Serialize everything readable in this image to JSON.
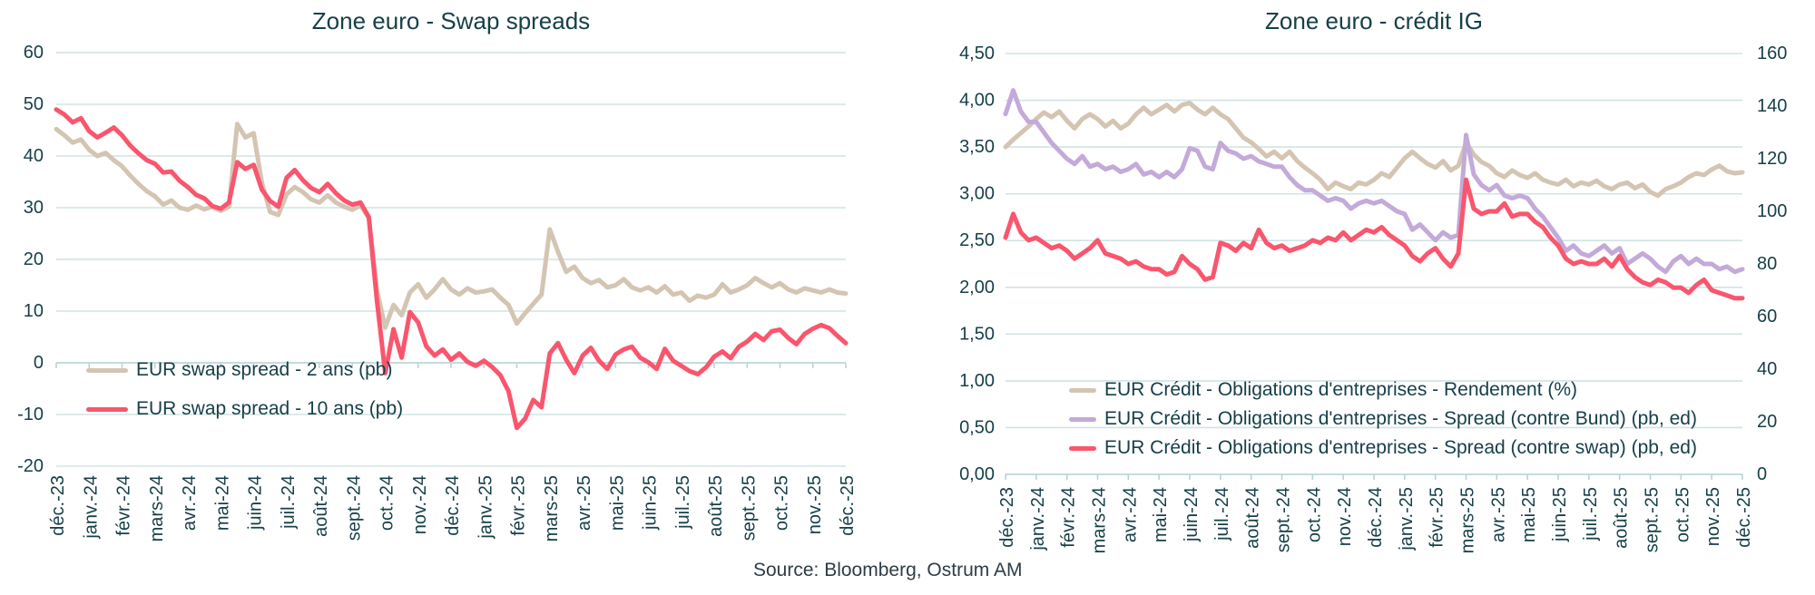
{
  "page": {
    "source": "Source: Bloomberg, Ostrum AM"
  },
  "style": {
    "text_color": "#174049",
    "grid_color": "#d2e3e4",
    "axis_color": "#b9d4d6",
    "beige": "#d4c5b3",
    "pink": "#f9566e",
    "purple": "#c3aad8",
    "background": "#ffffff"
  },
  "chart_data": [
    {
      "type": "line",
      "title": "Zone euro - Swap spreads",
      "grid": true,
      "legend_position": "inside-left",
      "categories": [
        "déc.-23",
        "janv.-24",
        "févr.-24",
        "mars-24",
        "avr.-24",
        "mai-24",
        "juin-24",
        "juil.-24",
        "août-24",
        "sept.-24",
        "oct.-24",
        "nov.-24",
        "déc.-24",
        "janv.-25",
        "févr.-25",
        "mars-25",
        "avr.-25",
        "mai-25",
        "juin-25",
        "juil.-25",
        "août-25",
        "sept.-25",
        "oct.-25",
        "nov.-25",
        "déc.-25"
      ],
      "points_per_month": 4,
      "axes": {
        "left": {
          "min": -20,
          "max": 60,
          "ticks": [
            "60",
            "50",
            "40",
            "30",
            "20",
            "10",
            "0",
            "-10",
            "-20"
          ]
        }
      },
      "series": [
        {
          "name": "EUR swap spread - 2 ans  (pb)",
          "color": "#d4c5b3",
          "axis": "left",
          "values": [
            45.2,
            44,
            42.6,
            43.2,
            41.2,
            40,
            40.6,
            39.2,
            38,
            36.2,
            34.6,
            33.2,
            32.2,
            30.6,
            31.4,
            30,
            29.6,
            30.4,
            29.7,
            30.2,
            29.4,
            30.2,
            46.2,
            43.6,
            44.4,
            34.8,
            29.2,
            28.6,
            32.6,
            34,
            33,
            31.6,
            31,
            32.4,
            31,
            30.2,
            29.6,
            30.4,
            28,
            14,
            6.8,
            11.2,
            9.2,
            13.6,
            15.2,
            12.6,
            14.2,
            16.2,
            14.2,
            13.2,
            14.4,
            13.6,
            13.8,
            14.2,
            12.6,
            11.2,
            7.6,
            9.6,
            11.4,
            13.2,
            25.8,
            21.5,
            17.6,
            18.6,
            16.4,
            15.4,
            16,
            14.6,
            15,
            16.2,
            14.6,
            14,
            14.6,
            13.6,
            14.8,
            13.2,
            13.6,
            12,
            13,
            12.6,
            13.2,
            15.2,
            13.6,
            14.2,
            15,
            16.4,
            15.4,
            14.6,
            15.4,
            14.2,
            13.6,
            14.4,
            14,
            13.6,
            14.2,
            13.6,
            13.4
          ]
        },
        {
          "name": "EUR swap spread - 10 ans  (pb)",
          "color": "#f9566e",
          "axis": "left",
          "values": [
            49,
            48,
            46.5,
            47.3,
            44.8,
            43.6,
            44.5,
            45.5,
            44,
            42,
            40.5,
            39.2,
            38.5,
            36.8,
            37,
            35.2,
            34,
            32.5,
            31.8,
            30.3,
            29.8,
            31,
            38.8,
            37.5,
            38.3,
            33.5,
            31.3,
            30.2,
            35.8,
            37.3,
            35.3,
            33.8,
            33,
            34.6,
            32.8,
            31.4,
            30.6,
            31,
            28.2,
            12,
            -2,
            6.5,
            1,
            9.8,
            7.8,
            3.2,
            1.4,
            2.6,
            0.6,
            1.8,
            0.2,
            -0.6,
            0.4,
            -0.8,
            -2.4,
            -5.5,
            -12.6,
            -10.8,
            -7.2,
            -8.6,
            1.8,
            3.8,
            0.6,
            -2,
            1.4,
            2.9,
            0.4,
            -1.2,
            1.6,
            2.6,
            3.1,
            1,
            0.1,
            -1.2,
            2.7,
            0.4,
            -0.6,
            -1.6,
            -2.2,
            -0.9,
            1.2,
            2.2,
            0.9,
            3.1,
            4.1,
            5.6,
            4.4,
            6.1,
            6.4,
            4.8,
            3.6,
            5.6,
            6.6,
            7.3,
            6.7,
            5.2,
            3.8
          ]
        }
      ]
    },
    {
      "type": "line",
      "title": "Zone euro - crédit IG",
      "grid": true,
      "legend_position": "inside-bottom",
      "categories": [
        "déc.-23",
        "janv.-24",
        "févr.-24",
        "mars-24",
        "avr.-24",
        "mai-24",
        "juin-24",
        "juil.-24",
        "août-24",
        "sept.-24",
        "oct.-24",
        "nov.-24",
        "déc.-24",
        "janv.-25",
        "févr.-25",
        "mars-25",
        "avr.-25",
        "mai-25",
        "juin-25",
        "juil.-25",
        "août-25",
        "sept.-25",
        "oct.-25",
        "nov.-25",
        "déc.-25"
      ],
      "points_per_month": 4,
      "axes": {
        "left": {
          "min": 0,
          "max": 4.5,
          "ticks": [
            "4,50",
            "4,00",
            "3,50",
            "3,00",
            "2,50",
            "2,00",
            "1,50",
            "1,00",
            "0,50",
            "0,00"
          ]
        },
        "right": {
          "min": 0,
          "max": 160,
          "ticks": [
            "160",
            "140",
            "120",
            "100",
            "80",
            "60",
            "40",
            "20",
            "0"
          ]
        }
      },
      "series": [
        {
          "name": "EUR Crédit - Obligations d'entreprises - Rendement  (%)",
          "color": "#d4c5b3",
          "axis": "left",
          "values": [
            3.5,
            3.58,
            3.65,
            3.72,
            3.8,
            3.87,
            3.82,
            3.88,
            3.78,
            3.7,
            3.8,
            3.85,
            3.8,
            3.72,
            3.78,
            3.7,
            3.75,
            3.85,
            3.92,
            3.85,
            3.9,
            3.95,
            3.88,
            3.95,
            3.97,
            3.9,
            3.85,
            3.92,
            3.85,
            3.8,
            3.7,
            3.6,
            3.55,
            3.48,
            3.4,
            3.45,
            3.38,
            3.45,
            3.35,
            3.28,
            3.22,
            3.15,
            3.05,
            3.12,
            3.08,
            3.05,
            3.12,
            3.1,
            3.15,
            3.22,
            3.18,
            3.28,
            3.38,
            3.45,
            3.38,
            3.32,
            3.28,
            3.35,
            3.25,
            3.3,
            3.55,
            3.42,
            3.34,
            3.3,
            3.22,
            3.18,
            3.25,
            3.2,
            3.17,
            3.22,
            3.15,
            3.12,
            3.1,
            3.15,
            3.08,
            3.12,
            3.1,
            3.14,
            3.08,
            3.05,
            3.1,
            3.12,
            3.06,
            3.1,
            3.02,
            2.98,
            3.05,
            3.08,
            3.12,
            3.18,
            3.22,
            3.2,
            3.26,
            3.3,
            3.24,
            3.22,
            3.23
          ]
        },
        {
          "name": "EUR Crédit - Obligations d'entreprises - Spread (contre Bund)  (pb, ed)",
          "color": "#c3aad8",
          "axis": "right",
          "values": [
            137,
            146,
            138,
            134,
            134,
            130,
            126,
            123,
            120,
            118,
            121,
            117,
            118,
            116,
            117,
            115,
            116,
            118,
            114,
            115,
            113,
            115,
            113,
            116,
            124,
            123,
            117,
            116,
            126,
            123,
            122,
            120,
            121,
            119,
            118,
            117,
            117,
            113,
            110,
            108,
            108,
            106,
            104,
            105,
            104,
            101,
            103,
            104,
            103,
            104,
            102,
            100,
            99,
            93,
            95,
            92,
            89,
            92,
            90,
            91,
            129,
            114,
            110,
            108,
            110,
            106,
            105,
            106,
            105,
            101,
            98,
            94,
            90,
            85,
            87,
            84,
            83,
            85,
            87,
            84,
            86,
            80,
            82,
            84,
            82,
            79,
            77,
            81,
            83,
            80,
            82,
            80,
            80,
            78,
            79,
            77,
            78
          ]
        },
        {
          "name": "EUR Crédit - Obligations d'entreprises - Spread (contre swap)  (pb, ed)",
          "color": "#f9566e",
          "axis": "right",
          "values": [
            90,
            99,
            92,
            89,
            90,
            88,
            86,
            87,
            85,
            82,
            84,
            86,
            89,
            84,
            83,
            82,
            80,
            81,
            79,
            78,
            78,
            76,
            77,
            83,
            80,
            78,
            74,
            75,
            88,
            87,
            85,
            88,
            86,
            93,
            88,
            86,
            87,
            85,
            86,
            87,
            89,
            88,
            90,
            89,
            92,
            89,
            91,
            93,
            92,
            94,
            91,
            89,
            87,
            83,
            81,
            84,
            86,
            82,
            79,
            84,
            112,
            101,
            99,
            100,
            100,
            103,
            98,
            99,
            99,
            96,
            94,
            90,
            87,
            82,
            80,
            81,
            80,
            80,
            82,
            79,
            83,
            78,
            75,
            73,
            72,
            74,
            73,
            71,
            71,
            69,
            72,
            74,
            70,
            69,
            68,
            67,
            67
          ]
        }
      ]
    }
  ]
}
